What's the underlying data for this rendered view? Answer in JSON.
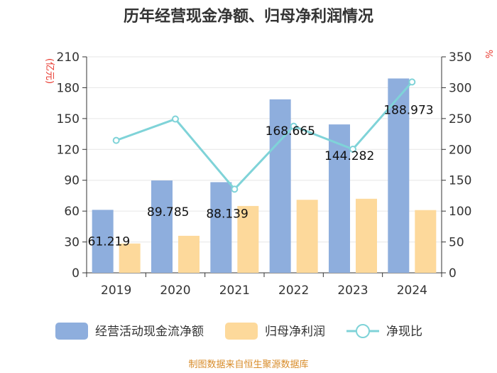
{
  "chart_data": {
    "type": "bar",
    "title": "历年经营现金净额、归母净利润情况",
    "categories": [
      "2019",
      "2020",
      "2021",
      "2022",
      "2023",
      "2024"
    ],
    "left_axis": {
      "unit": "(亿元)",
      "min": 0,
      "max": 210,
      "ticks": [
        0,
        30,
        60,
        90,
        120,
        150,
        180,
        210
      ]
    },
    "right_axis": {
      "unit": "%",
      "min": 0,
      "max": 350,
      "ticks": [
        0,
        50,
        100,
        150,
        200,
        250,
        300,
        350
      ]
    },
    "series": [
      {
        "name": "经营活动现金流净额",
        "type": "bar",
        "axis": "left",
        "color": "#8eaedd",
        "values": [
          61.219,
          89.785,
          88.139,
          168.665,
          144.282,
          188.973
        ],
        "data_labels": [
          "61.219",
          "89.785",
          "88.139",
          "168.665",
          "144.282",
          "188.973"
        ]
      },
      {
        "name": "归母净利润",
        "type": "bar",
        "axis": "left",
        "color": "#fdd99b",
        "values": [
          28.5,
          36.0,
          65.0,
          71.0,
          72.0,
          61.0
        ]
      },
      {
        "name": "净现比",
        "type": "line",
        "axis": "right",
        "color": "#7fd3d8",
        "values": [
          214.6,
          249.2,
          135.6,
          237.6,
          200.3,
          309.3
        ]
      }
    ],
    "grid": true,
    "legend_position": "bottom"
  },
  "footer": "制图数据来自恒生聚源数据库"
}
